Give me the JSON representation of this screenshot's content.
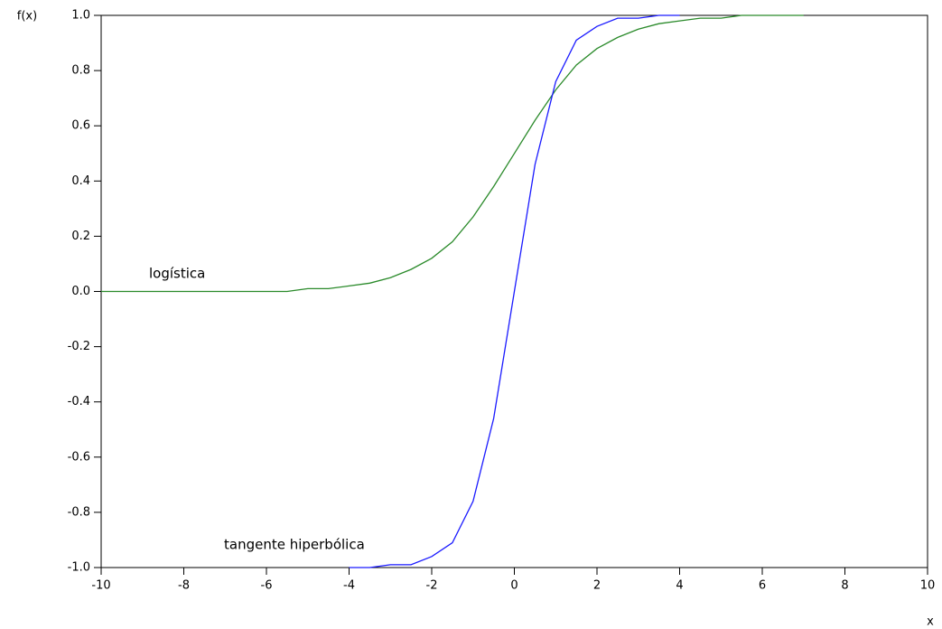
{
  "chart_data": {
    "type": "line",
    "y_label": "f(x)",
    "x_label": "x",
    "x": [
      -10,
      -9.5,
      -9,
      -8.5,
      -8,
      -7.5,
      -7,
      -6.5,
      -6,
      -5.5,
      -5,
      -4.5,
      -4,
      -3.5,
      -3,
      -2.5,
      -2,
      -1.5,
      -1,
      -0.5,
      0,
      0.5,
      1,
      1.5,
      2,
      2.5,
      3,
      3.5,
      4,
      4.5,
      5,
      5.5,
      6,
      6.5,
      7
    ],
    "series": [
      {
        "name": "logística",
        "color": "#2a8a2a",
        "values": [
          0,
          0,
          0,
          0,
          0,
          0,
          0,
          0,
          0,
          0,
          0.01,
          0.01,
          0.02,
          0.03,
          0.05,
          0.08,
          0.12,
          0.18,
          0.27,
          0.38,
          0.5,
          0.62,
          0.73,
          0.82,
          0.88,
          0.92,
          0.95,
          0.97,
          0.98,
          0.99,
          0.99,
          1.0,
          1.0,
          1.0,
          1.0
        ]
      },
      {
        "name": "tangente hiperbólica",
        "color": "#1a1aff",
        "values": [
          null,
          null,
          null,
          null,
          null,
          null,
          null,
          null,
          null,
          null,
          null,
          null,
          -1.0,
          -1.0,
          -0.99,
          -0.99,
          -0.96,
          -0.91,
          -0.76,
          -0.46,
          0,
          0.46,
          0.76,
          0.91,
          0.96,
          0.99,
          0.99,
          1.0,
          1.0,
          null,
          null,
          null,
          null,
          null,
          null
        ]
      }
    ],
    "xlim": [
      -10,
      10
    ],
    "xticks": [
      -10,
      -8,
      -6,
      -4,
      -2,
      0,
      2,
      4,
      6,
      8,
      10
    ],
    "ylim": [
      -1,
      1
    ],
    "yticks": [
      {
        "value": -1,
        "label": "-1.0"
      },
      {
        "value": -0.8,
        "label": "-0.8"
      },
      {
        "value": -0.6,
        "label": "-0.6"
      },
      {
        "value": -0.4,
        "label": "-0.4"
      },
      {
        "value": -0.2,
        "label": "-0.2"
      },
      {
        "value": 0,
        "label": "0.0"
      },
      {
        "value": 0.2,
        "label": "0.2"
      },
      {
        "value": 0.4,
        "label": "0.4"
      },
      {
        "value": 0.6,
        "label": "0.6"
      },
      {
        "value": 0.8,
        "label": "0.8"
      },
      {
        "value": 1,
        "label": "1.0"
      }
    ],
    "grid": false
  }
}
